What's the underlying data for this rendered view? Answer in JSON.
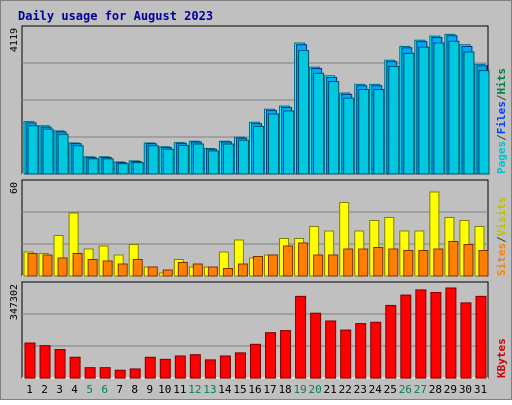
{
  "chart_data": {
    "type": "bar",
    "title": "Daily usage for August 2023",
    "categories": [
      "1",
      "2",
      "3",
      "4",
      "5",
      "6",
      "7",
      "8",
      "9",
      "10",
      "11",
      "12",
      "13",
      "14",
      "15",
      "16",
      "17",
      "18",
      "19",
      "20",
      "21",
      "22",
      "23",
      "24",
      "25",
      "26",
      "27",
      "28",
      "29",
      "30",
      "31"
    ],
    "weekend_days": [
      "5",
      "6",
      "12",
      "13",
      "19",
      "20",
      "26",
      "27"
    ],
    "panels": [
      {
        "name": "hits-files-pages",
        "max_label": "4119",
        "ylim": [
          0,
          4119
        ],
        "side_legend": [
          {
            "text": "Pages",
            "color": "#00c0d0"
          },
          {
            "text": "/",
            "color": "#404040"
          },
          {
            "text": "Files",
            "color": "#0040ff"
          },
          {
            "text": "/",
            "color": "#404040"
          },
          {
            "text": "Hits",
            "color": "#008040"
          }
        ],
        "series": [
          {
            "name": "Hits",
            "color": "#00ffff",
            "edge": "#006b80",
            "values": [
              1520,
              1400,
              1250,
              900,
              500,
              500,
              350,
              380,
              900,
              790,
              910,
              950,
              740,
              950,
              1070,
              1500,
              1880,
              1970,
              3800,
              3100,
              2850,
              2350,
              2600,
              2600,
              3300,
              3700,
              3880,
              4000,
              4050,
              3750,
              3180
            ]
          },
          {
            "name": "Files",
            "color": "#00a8ff",
            "edge": "#003a80",
            "values": [
              1480,
              1360,
              1220,
              880,
              480,
              480,
              330,
              360,
              880,
              770,
              890,
              930,
              720,
              930,
              1040,
              1460,
              1840,
              1930,
              3750,
              3060,
              2800,
              2310,
              2560,
              2560,
              3260,
              3660,
              3840,
              3960,
              4010,
              3700,
              3140
            ]
          },
          {
            "name": "Pages",
            "color": "#00c8e0",
            "edge": "#005060",
            "values": [
              1400,
              1300,
              1150,
              820,
              440,
              440,
              300,
              330,
              820,
              720,
              830,
              870,
              670,
              870,
              980,
              1380,
              1740,
              1830,
              3580,
              2920,
              2680,
              2200,
              2450,
              2450,
              3120,
              3500,
              3680,
              3800,
              3850,
              3540,
              3000
            ]
          }
        ]
      },
      {
        "name": "visits-sites",
        "max_label": "60",
        "ylim": [
          0,
          60
        ],
        "side_legend": [
          {
            "text": "Sites",
            "color": "#ff8000"
          },
          {
            "text": "/",
            "color": "#404040"
          },
          {
            "text": "Visits",
            "color": "#c0c000"
          }
        ],
        "series": [
          {
            "name": "Visits",
            "color": "#ffff00",
            "edge": "#808000",
            "values": [
              16,
              15,
              27,
              42,
              18,
              20,
              14,
              21,
              6,
              2,
              11,
              6,
              6,
              16,
              24,
              12,
              14,
              25,
              25,
              33,
              30,
              49,
              30,
              37,
              39,
              30,
              30,
              56,
              39,
              37,
              33
            ]
          },
          {
            "name": "Sites",
            "color": "#ff8000",
            "edge": "#803000",
            "values": [
              15,
              14,
              12,
              15,
              11,
              10,
              8,
              11,
              6,
              4,
              9,
              8,
              6,
              5,
              8,
              13,
              14,
              20,
              22,
              14,
              14,
              18,
              18,
              19,
              18,
              17,
              17,
              18,
              23,
              21,
              17
            ]
          }
        ]
      },
      {
        "name": "kbytes",
        "max_label": "347302",
        "ylim": [
          0,
          347302
        ],
        "side_legend": [
          {
            "text": "KBytes",
            "color": "#d00000"
          }
        ],
        "series": [
          {
            "name": "KBytes",
            "color": "#ff0000",
            "edge": "#800000",
            "values": [
              135000,
              125000,
              110000,
              80000,
              40000,
              40000,
              30000,
              35000,
              80000,
              72000,
              85000,
              90000,
              70000,
              85000,
              97000,
              130000,
              175000,
              183000,
              315000,
              250000,
              220000,
              185000,
              210000,
              215000,
              280000,
              320000,
              340000,
              330000,
              347302,
              290000,
              315000
            ]
          }
        ]
      }
    ]
  }
}
